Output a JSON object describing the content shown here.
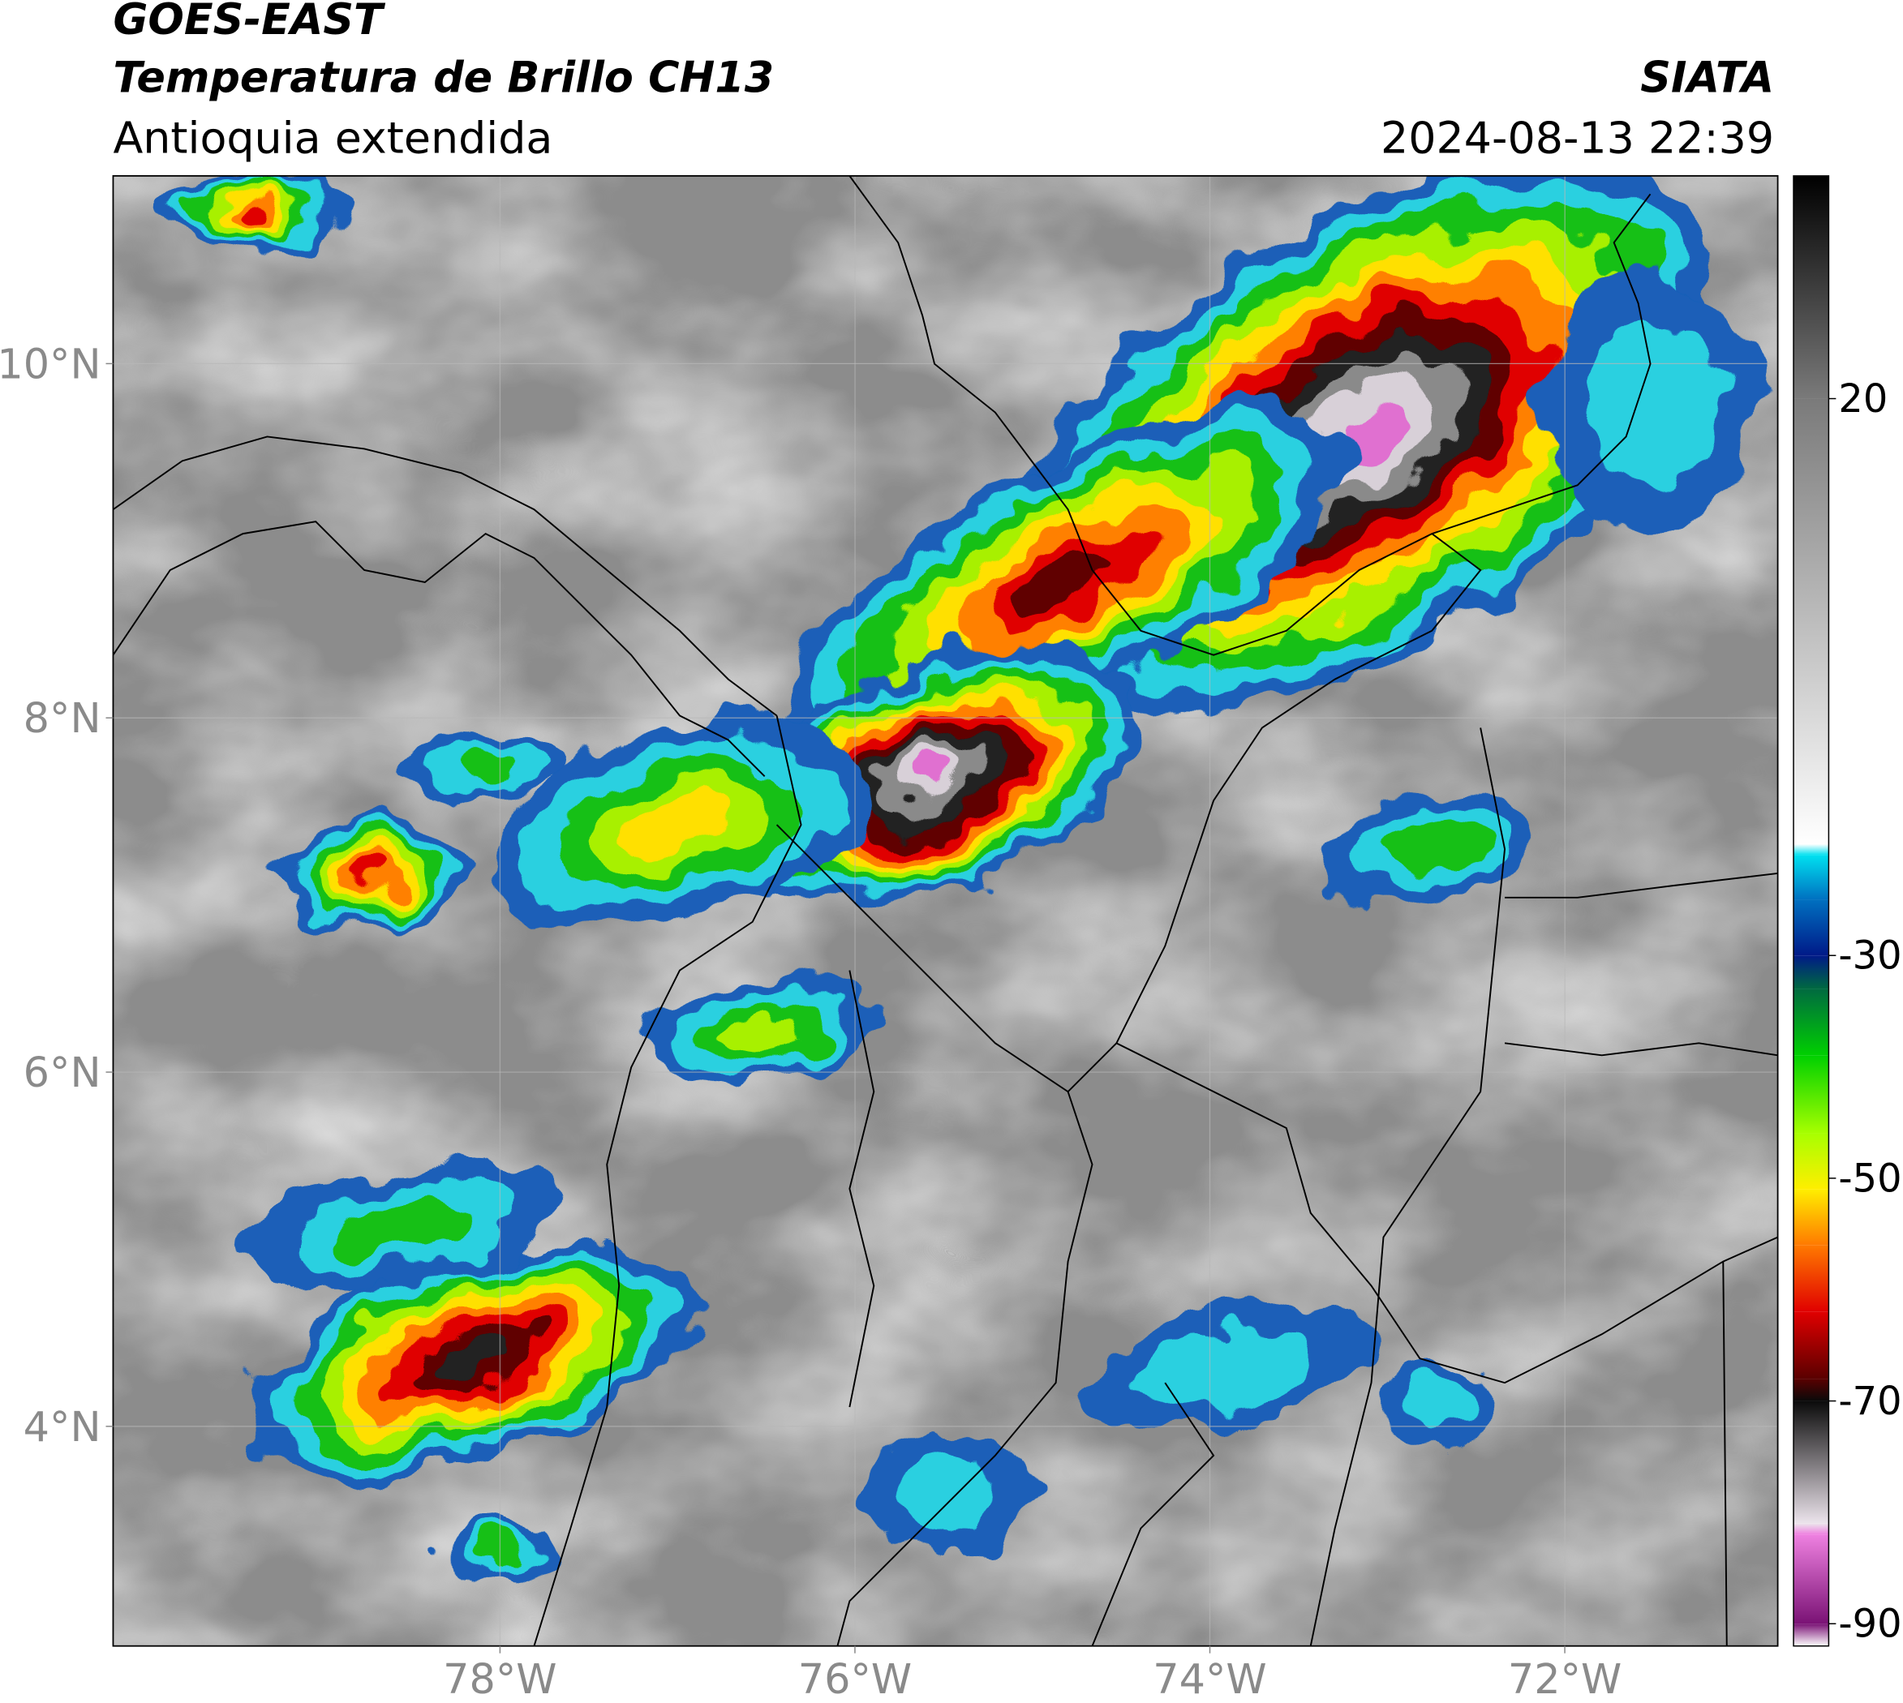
{
  "header": {
    "title": "GOES-EAST",
    "subtitle": "Temperatura de Brillo CH13",
    "region": "Antioquia extendida",
    "source": "SIATA",
    "datetime": "2024-08-13 22:39"
  },
  "map": {
    "xlim": [
      -80.18,
      -70.8
    ],
    "ylim": [
      2.76,
      11.06
    ],
    "grid": true,
    "xticks": [
      {
        "value": -78,
        "label": "78°W"
      },
      {
        "value": -76,
        "label": "76°W"
      },
      {
        "value": -74,
        "label": "74°W"
      },
      {
        "value": -72,
        "label": "72°W"
      }
    ],
    "yticks": [
      {
        "value": 4,
        "label": "4°N"
      },
      {
        "value": 6,
        "label": "6°N"
      },
      {
        "value": 8,
        "label": "8°N"
      },
      {
        "value": 10,
        "label": "10°N"
      }
    ]
  },
  "colorbar": {
    "clim": [
      -92,
      40
    ],
    "ticks": [
      20,
      -30,
      -50,
      -70,
      -90
    ],
    "stops": [
      {
        "value": -92,
        "color": "#ffffff"
      },
      {
        "value": -90,
        "color": "#7a1275"
      },
      {
        "value": -82,
        "color": "#ee80e0"
      },
      {
        "value": -81,
        "color": "#ece4ec"
      },
      {
        "value": -70,
        "color": "#0a0a0a"
      },
      {
        "value": -68,
        "color": "#5a0000"
      },
      {
        "value": -62,
        "color": "#e00000"
      },
      {
        "value": -56,
        "color": "#ff7a00"
      },
      {
        "value": -51,
        "color": "#ffee00"
      },
      {
        "value": -46,
        "color": "#a8ff00"
      },
      {
        "value": -39,
        "color": "#00d000"
      },
      {
        "value": -33,
        "color": "#006a40"
      },
      {
        "value": -30,
        "color": "#001a88"
      },
      {
        "value": -25,
        "color": "#0070c0"
      },
      {
        "value": -21,
        "color": "#00e0f0"
      },
      {
        "value": -20,
        "color": "#ffffff"
      },
      {
        "value": 20,
        "color": "#7a7a7a"
      },
      {
        "value": 40,
        "color": "#000000"
      }
    ]
  }
}
